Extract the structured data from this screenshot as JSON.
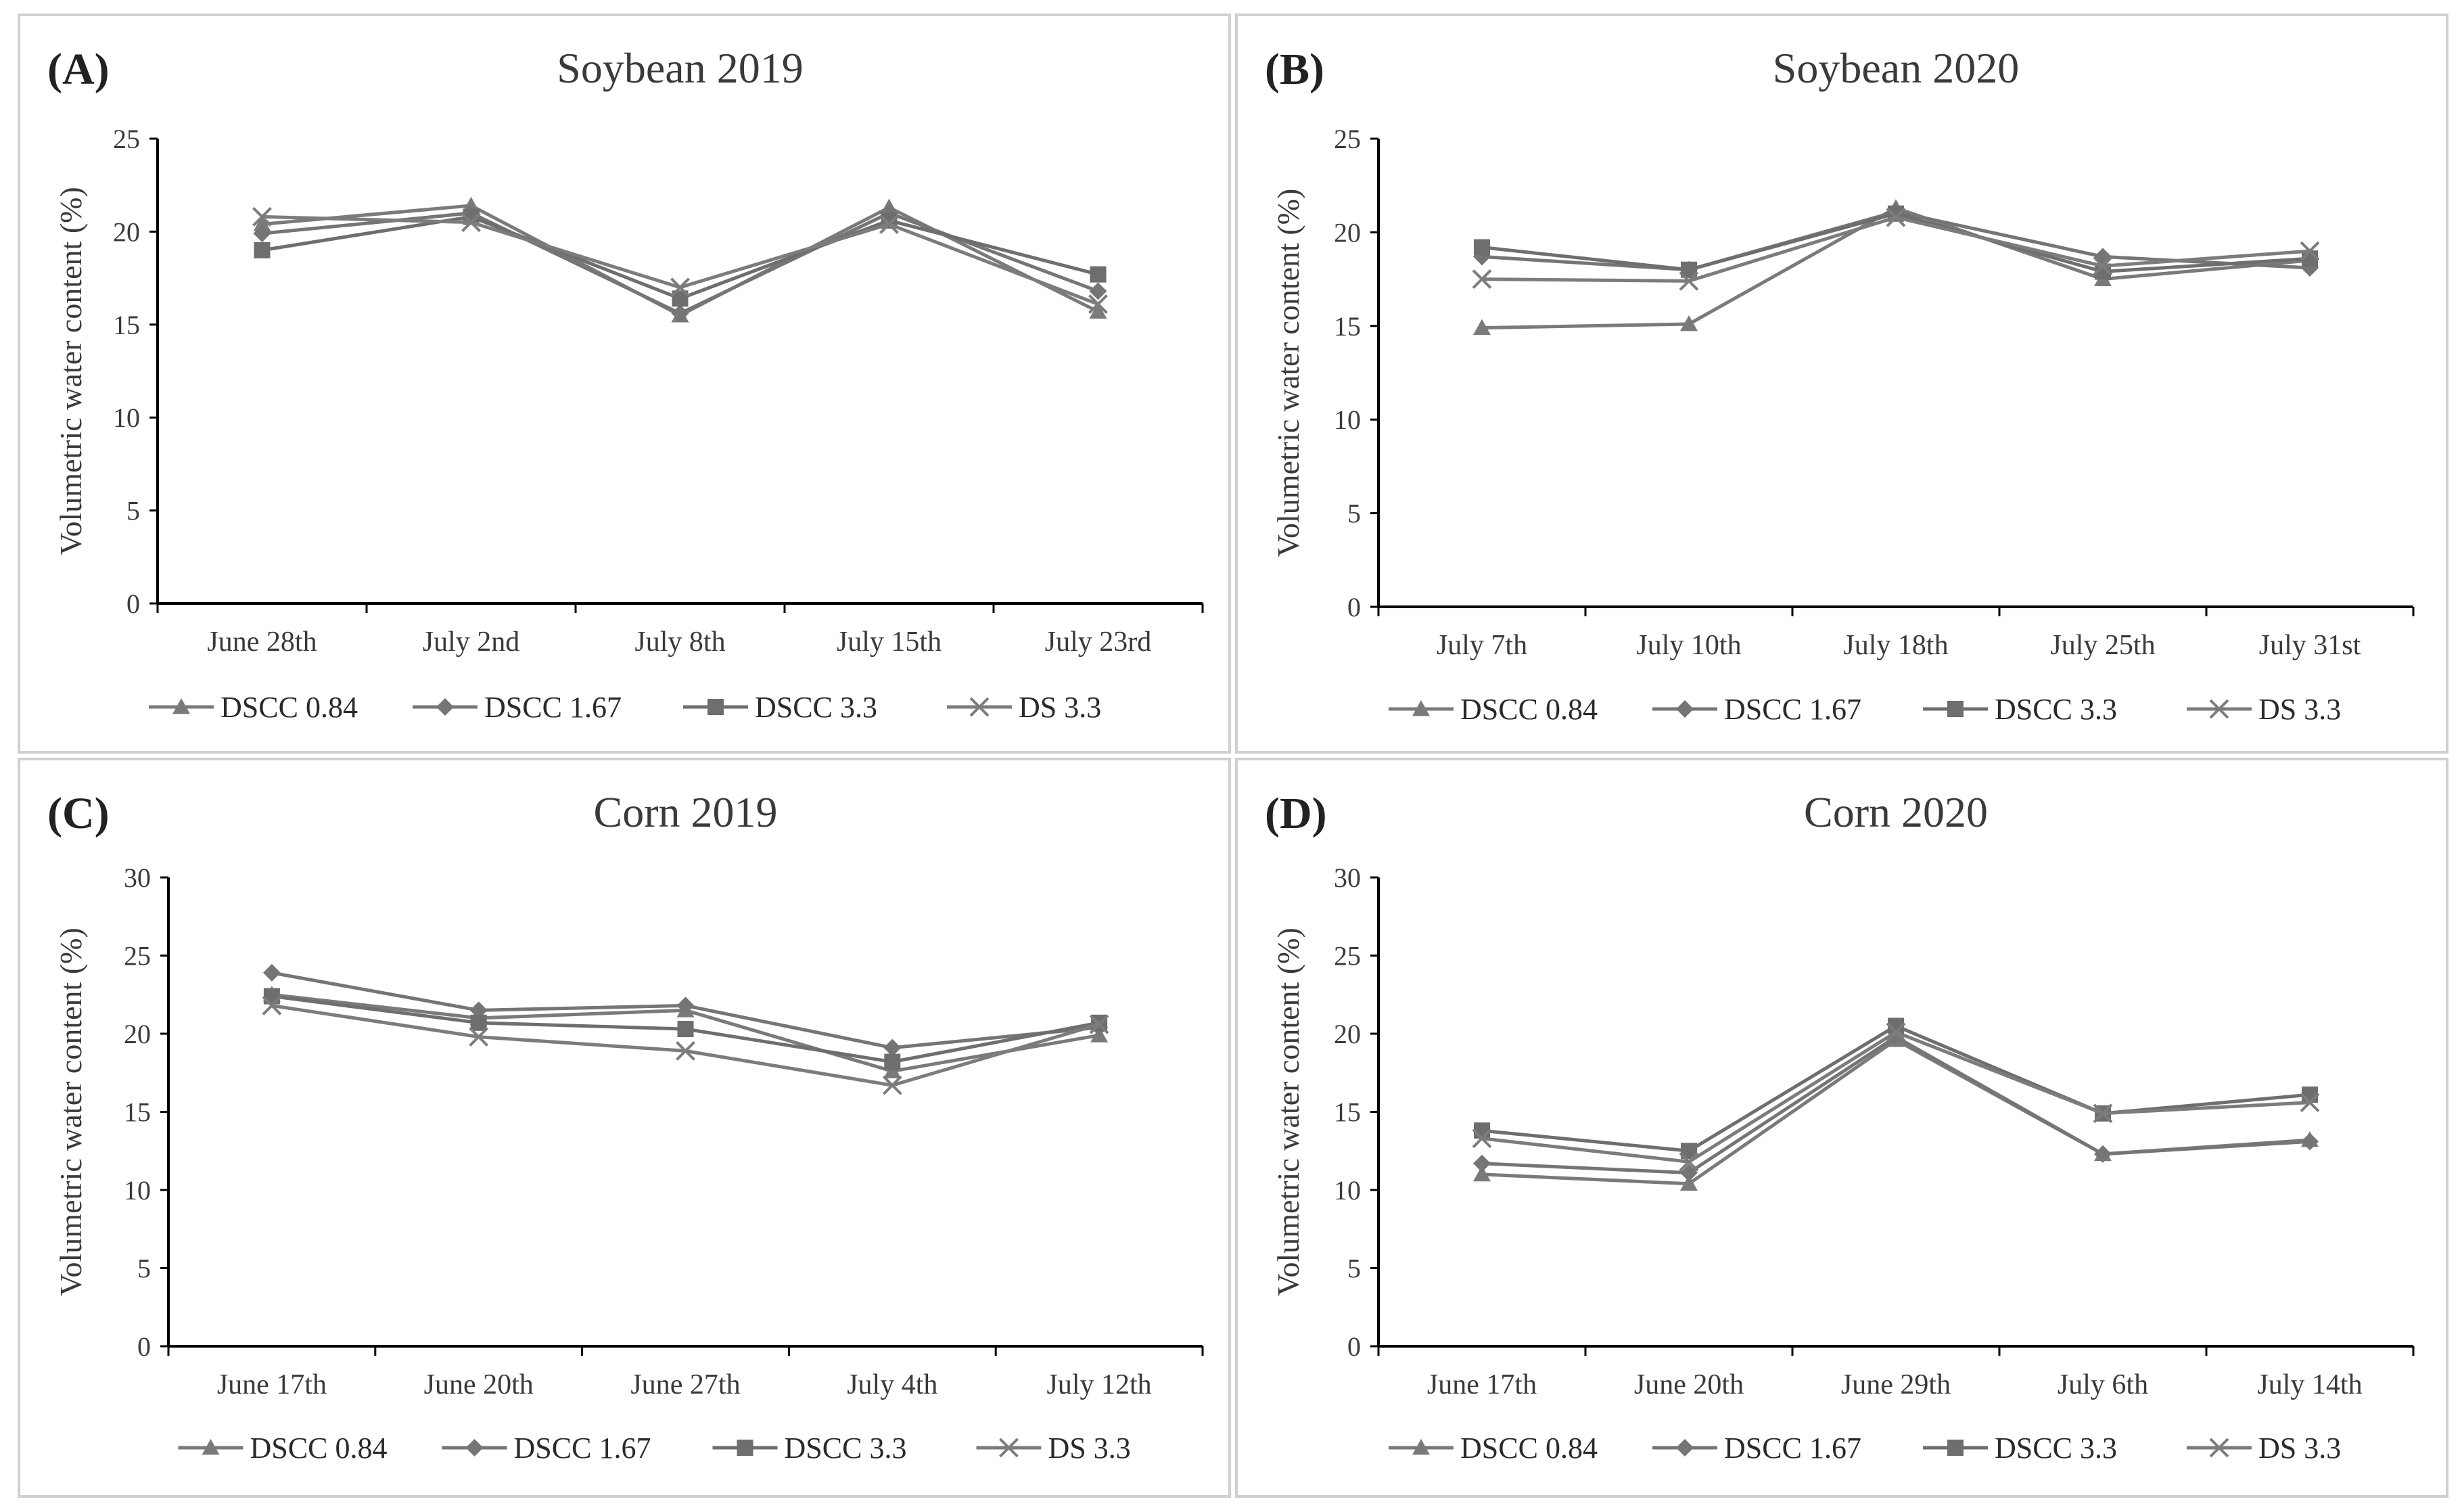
{
  "figure": {
    "colors": {
      "series": [
        "#7a7a7a",
        "#757575",
        "#6e6e6e",
        "#7c7c7c"
      ],
      "axis": "#000000",
      "border": "#d0d0d0"
    }
  },
  "chart_data": [
    {
      "label": "(A)",
      "type": "line",
      "title": "Soybean 2019",
      "xlabel": "",
      "ylabel": "Volumetric water content (%)",
      "ylim": [
        0,
        25
      ],
      "yticks": [
        0,
        5,
        10,
        15,
        20,
        25
      ],
      "categories": [
        "June 28th",
        "July 2nd",
        "July 8th",
        "July 15th",
        "July 23rd"
      ],
      "legend_position": "bottom",
      "series": [
        {
          "name": "DSCC 0.84",
          "marker": "triangle",
          "values": [
            20.4,
            21.4,
            15.5,
            21.3,
            15.7
          ]
        },
        {
          "name": "DSCC 1.67",
          "marker": "diamond",
          "values": [
            19.9,
            21.0,
            15.6,
            21.0,
            16.8
          ]
        },
        {
          "name": "DSCC 3.3",
          "marker": "square",
          "values": [
            19.0,
            20.8,
            16.4,
            20.6,
            17.7
          ]
        },
        {
          "name": "DS 3.3",
          "marker": "x",
          "values": [
            20.8,
            20.5,
            17.0,
            20.4,
            16.1
          ]
        }
      ]
    },
    {
      "label": "(B)",
      "type": "line",
      "title": "Soybean 2020",
      "xlabel": "",
      "ylabel": "Volumetric water content (%)",
      "ylim": [
        0,
        25
      ],
      "yticks": [
        0,
        5,
        10,
        15,
        20,
        25
      ],
      "categories": [
        "July 7th",
        "July 10th",
        "July 18th",
        "July 25th",
        "July 31st"
      ],
      "legend_position": "bottom",
      "series": [
        {
          "name": "DSCC 0.84",
          "marker": "triangle",
          "values": [
            14.9,
            15.1,
            21.3,
            17.5,
            18.5
          ]
        },
        {
          "name": "DSCC 1.67",
          "marker": "diamond",
          "values": [
            18.7,
            18.0,
            21.1,
            18.7,
            18.1
          ]
        },
        {
          "name": "DSCC 3.3",
          "marker": "square",
          "values": [
            19.2,
            18.0,
            21.0,
            17.9,
            18.6
          ]
        },
        {
          "name": "DS 3.3",
          "marker": "x",
          "values": [
            17.5,
            17.4,
            20.8,
            18.2,
            19.0
          ]
        }
      ]
    },
    {
      "label": "(C)",
      "type": "line",
      "title": "Corn 2019",
      "xlabel": "",
      "ylabel": "Volumetric water content (%)",
      "ylim": [
        0,
        30
      ],
      "yticks": [
        0,
        5,
        10,
        15,
        20,
        25,
        30
      ],
      "categories": [
        "June 17th",
        "June 20th",
        "June 27th",
        "July 4th",
        "July 12th"
      ],
      "legend_position": "bottom",
      "series": [
        {
          "name": "DSCC 0.84",
          "marker": "triangle",
          "values": [
            22.5,
            21.0,
            21.5,
            17.6,
            19.9
          ]
        },
        {
          "name": "DSCC 1.67",
          "marker": "diamond",
          "values": [
            23.9,
            21.5,
            21.8,
            19.1,
            20.4
          ]
        },
        {
          "name": "DSCC 3.3",
          "marker": "square",
          "values": [
            22.4,
            20.7,
            20.3,
            18.2,
            20.7
          ]
        },
        {
          "name": "DS 3.3",
          "marker": "x",
          "values": [
            21.8,
            19.8,
            18.9,
            16.7,
            20.6
          ]
        }
      ]
    },
    {
      "label": "(D)",
      "type": "line",
      "title": "Corn 2020",
      "xlabel": "",
      "ylabel": "Volumetric water content (%)",
      "ylim": [
        0,
        30
      ],
      "yticks": [
        0,
        5,
        10,
        15,
        20,
        25,
        30
      ],
      "categories": [
        "June 17th",
        "June 20th",
        "June 29th",
        "July 6th",
        "July 14th"
      ],
      "legend_position": "bottom",
      "series": [
        {
          "name": "DSCC 0.84",
          "marker": "triangle",
          "values": [
            11.0,
            10.4,
            19.6,
            12.3,
            13.2
          ]
        },
        {
          "name": "DSCC 1.67",
          "marker": "diamond",
          "values": [
            11.7,
            11.1,
            19.8,
            12.3,
            13.1
          ]
        },
        {
          "name": "DSCC 3.3",
          "marker": "square",
          "values": [
            13.8,
            12.5,
            20.5,
            14.9,
            16.1
          ]
        },
        {
          "name": "DS 3.3",
          "marker": "x",
          "values": [
            13.3,
            11.8,
            20.1,
            14.9,
            15.6
          ]
        }
      ]
    }
  ]
}
